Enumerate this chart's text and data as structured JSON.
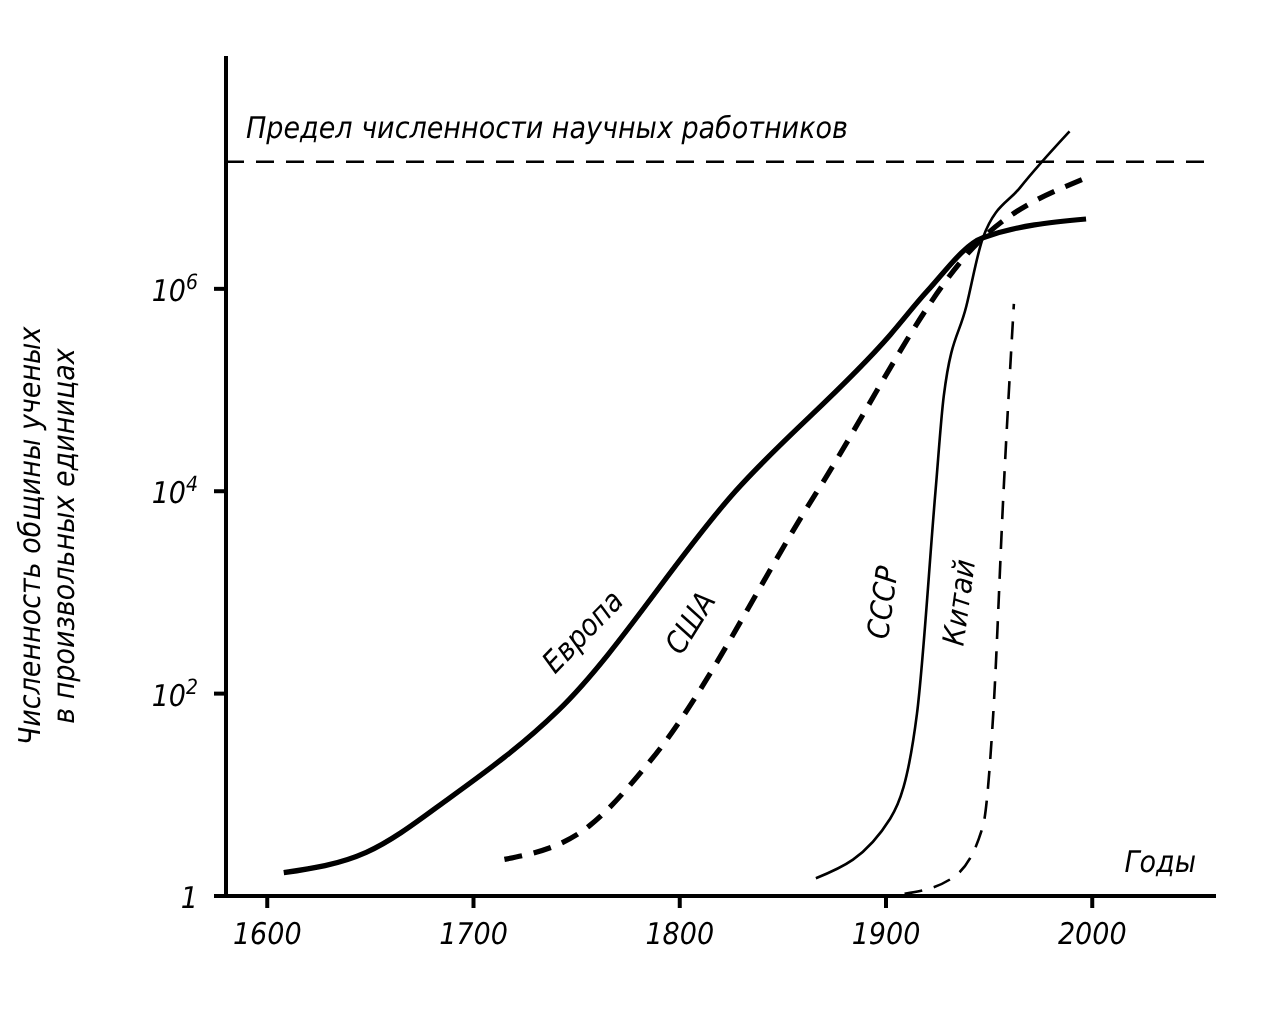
{
  "chart_data": {
    "type": "line",
    "xlabel": "Годы",
    "ylabel": "Численность общины ученых\nв произвольных единицах",
    "log": "y",
    "xlim": [
      1580,
      2060
    ],
    "xticks": [
      1600,
      1700,
      1800,
      1900,
      2000
    ],
    "ylim": [
      1,
      200000000
    ],
    "yticks": [
      {
        "value": 1,
        "label": "1"
      },
      {
        "value": 100,
        "label": "10$^{2}$"
      },
      {
        "value": 10000,
        "label": "10$^{4}$"
      },
      {
        "value": 1000000,
        "label": "10$^{6}$"
      }
    ],
    "marker": "none",
    "ref_lines": [
      {
        "axis": "y",
        "value": 18000000,
        "label": "Предел численности научных работников",
        "line_style": "dashed",
        "color": "#000000"
      }
    ],
    "series": [
      {
        "name": "Европа",
        "color": "#000000",
        "line_style": "solid",
        "x": [
          1608,
          1648,
          1689,
          1741,
          1827,
          1902,
          1920,
          1947,
          1997
        ],
        "values": [
          1.7,
          2.7,
          9.5,
          68,
          10000,
          350000,
          950000,
          3200000,
          4900000
        ]
      },
      {
        "name": "США",
        "color": "#000000",
        "line_style": "dashed",
        "x": [
          1715,
          1756,
          1786,
          1866,
          1947,
          1995
        ],
        "values": [
          2.3,
          4.9,
          22,
          9500,
          3200000,
          12000000
        ]
      },
      {
        "name": "СССР",
        "color": "#000000",
        "line_style": "solid",
        "x": [
          1866,
          1902,
          1915,
          1924,
          1928,
          1939,
          1947,
          1965,
          1989
        ],
        "values": [
          1.5,
          5.8,
          63,
          10000,
          87000,
          680000,
          3200000,
          10000000,
          36000000
        ]
      },
      {
        "name": "Китай",
        "color": "#000000",
        "line_style": "dashed",
        "x": [
          1909,
          1932,
          1947,
          1952,
          1957,
          1962
        ],
        "values": [
          1.05,
          1.5,
          4.9,
          63,
          10000,
          710000
        ]
      }
    ]
  }
}
